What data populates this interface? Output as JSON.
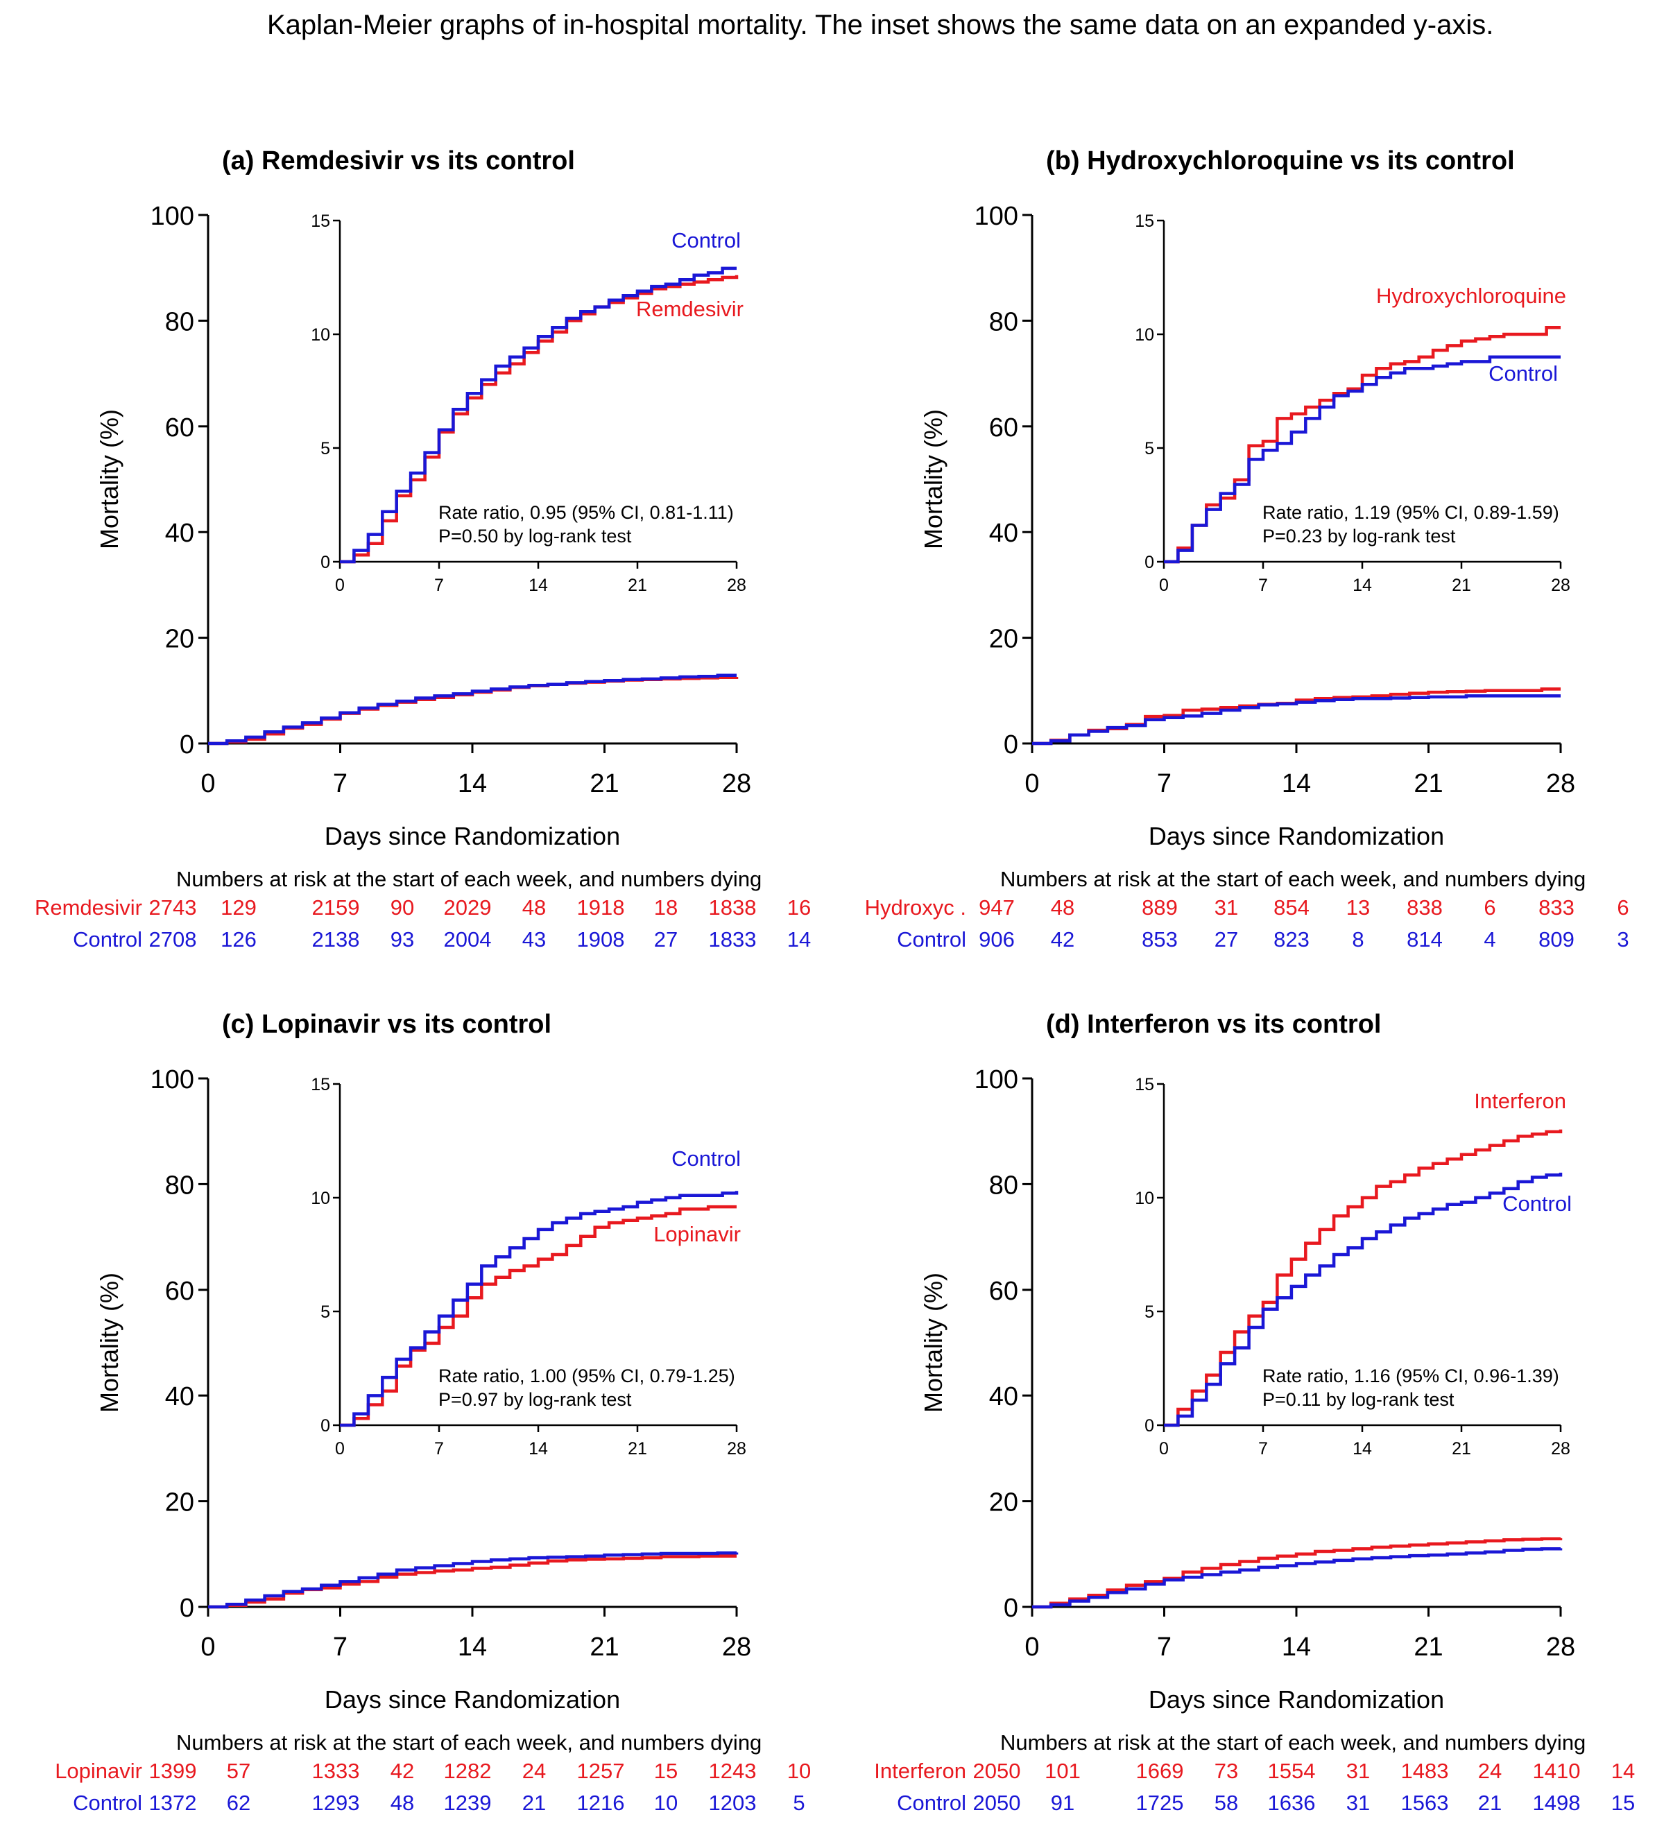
{
  "figure_title": "Kaplan-Meier graphs of in-hospital mortality. The inset shows the same data on an expanded y-axis.",
  "colors": {
    "treatment": "#e8191f",
    "control": "#1a17d6",
    "axis": "#000000"
  },
  "chart_data": [
    {
      "type": "line",
      "step": true,
      "title": "(a) Remdesivir vs its control",
      "xlabel": "Days since Randomization",
      "ylabel": "Mortality (%)",
      "xlim": [
        0,
        28
      ],
      "ylim": [
        0,
        100
      ],
      "xticks": [
        0,
        7,
        14,
        21,
        28
      ],
      "yticks": [
        0,
        20,
        40,
        60,
        80,
        100
      ],
      "inset": {
        "xlim": [
          0,
          28
        ],
        "ylim": [
          0,
          15
        ],
        "xticks": [
          0,
          7,
          14,
          21,
          28
        ],
        "yticks": [
          0,
          5,
          10,
          15
        ]
      },
      "series": [
        {
          "name": "Remdesivir",
          "role": "treatment",
          "label_in_inset": "Remdesivir",
          "x": [
            0,
            1,
            2,
            3,
            4,
            5,
            6,
            7,
            8,
            9,
            10,
            11,
            12,
            13,
            14,
            15,
            16,
            17,
            18,
            19,
            20,
            21,
            22,
            23,
            24,
            25,
            26,
            27,
            28
          ],
          "y": [
            0,
            0.3,
            0.8,
            1.8,
            2.9,
            3.6,
            4.6,
            5.7,
            6.5,
            7.2,
            7.8,
            8.3,
            8.7,
            9.2,
            9.7,
            10.1,
            10.6,
            10.9,
            11.2,
            11.4,
            11.6,
            11.8,
            12.0,
            12.1,
            12.2,
            12.3,
            12.4,
            12.5,
            12.6
          ]
        },
        {
          "name": "Control",
          "role": "control",
          "label_in_inset": "Control",
          "x": [
            0,
            1,
            2,
            3,
            4,
            5,
            6,
            7,
            8,
            9,
            10,
            11,
            12,
            13,
            14,
            15,
            16,
            17,
            18,
            19,
            20,
            21,
            22,
            23,
            24,
            25,
            26,
            27,
            28
          ],
          "y": [
            0,
            0.5,
            1.2,
            2.2,
            3.1,
            3.9,
            4.8,
            5.8,
            6.7,
            7.4,
            8.0,
            8.6,
            9.0,
            9.4,
            9.9,
            10.3,
            10.7,
            11.0,
            11.2,
            11.5,
            11.7,
            11.9,
            12.1,
            12.2,
            12.4,
            12.6,
            12.7,
            12.9,
            12.9
          ]
        }
      ],
      "stats": [
        "Rate ratio, 0.95 (95% CI, 0.81-1.11)",
        "P=0.50 by log-rank test"
      ],
      "risk_table": {
        "heading": "Numbers at risk at the start of each week, and numbers dying",
        "rows": [
          {
            "label": "Remdesivir",
            "role": "treatment",
            "values": [
              "2743",
              "129",
              "2159",
              "90",
              "2029",
              "48",
              "1918",
              "18",
              "1838",
              "16"
            ]
          },
          {
            "label": "Control",
            "role": "control",
            "values": [
              "2708",
              "126",
              "2138",
              "93",
              "2004",
              "43",
              "1908",
              "27",
              "1833",
              "14"
            ]
          }
        ]
      }
    },
    {
      "type": "line",
      "step": true,
      "title": "(b) Hydroxychloroquine vs its control",
      "xlabel": "Days since Randomization",
      "ylabel": "Mortality (%)",
      "xlim": [
        0,
        28
      ],
      "ylim": [
        0,
        100
      ],
      "xticks": [
        0,
        7,
        14,
        21,
        28
      ],
      "yticks": [
        0,
        20,
        40,
        60,
        80,
        100
      ],
      "inset": {
        "xlim": [
          0,
          28
        ],
        "ylim": [
          0,
          15
        ],
        "xticks": [
          0,
          7,
          14,
          21,
          28
        ],
        "yticks": [
          0,
          5,
          10,
          15
        ]
      },
      "series": [
        {
          "name": "Hydroxychloroquine",
          "role": "treatment",
          "label_in_inset": "Hydroxychloroquine",
          "x": [
            0,
            1,
            2,
            3,
            4,
            5,
            6,
            7,
            8,
            9,
            10,
            11,
            12,
            13,
            14,
            15,
            16,
            17,
            18,
            19,
            20,
            21,
            22,
            23,
            24,
            25,
            26,
            27,
            28
          ],
          "y": [
            0,
            0.6,
            1.6,
            2.5,
            2.8,
            3.6,
            5.1,
            5.3,
            6.3,
            6.5,
            6.8,
            7.1,
            7.4,
            7.6,
            8.2,
            8.5,
            8.7,
            8.8,
            9.0,
            9.3,
            9.5,
            9.7,
            9.8,
            9.9,
            10.0,
            10.0,
            10.0,
            10.3,
            10.3
          ]
        },
        {
          "name": "Control",
          "role": "control",
          "label_in_inset": "Control",
          "x": [
            0,
            1,
            2,
            3,
            4,
            5,
            6,
            7,
            8,
            9,
            10,
            11,
            12,
            13,
            14,
            15,
            16,
            17,
            18,
            19,
            20,
            21,
            22,
            23,
            24,
            25,
            26,
            27,
            28
          ],
          "y": [
            0,
            0.5,
            1.6,
            2.3,
            3.0,
            3.4,
            4.5,
            4.9,
            5.2,
            5.7,
            6.3,
            6.8,
            7.3,
            7.5,
            7.8,
            8.1,
            8.3,
            8.5,
            8.5,
            8.6,
            8.7,
            8.8,
            8.8,
            9.0,
            9.0,
            9.0,
            9.0,
            9.0,
            9.0
          ]
        }
      ],
      "stats": [
        "Rate ratio, 1.19 (95% CI, 0.89-1.59)",
        "P=0.23 by log-rank test"
      ],
      "risk_table": {
        "heading": "Numbers at risk at the start of each week, and numbers dying",
        "rows": [
          {
            "label": "Hydroxyc .",
            "role": "treatment",
            "values": [
              "947",
              "48",
              "889",
              "31",
              "854",
              "13",
              "838",
              "6",
              "833",
              "6"
            ]
          },
          {
            "label": "Control",
            "role": "control",
            "values": [
              "906",
              "42",
              "853",
              "27",
              "823",
              "8",
              "814",
              "4",
              "809",
              "3"
            ]
          }
        ]
      }
    },
    {
      "type": "line",
      "step": true,
      "title": "(c) Lopinavir vs its control",
      "xlabel": "Days since Randomization",
      "ylabel": "Mortality (%)",
      "xlim": [
        0,
        28
      ],
      "ylim": [
        0,
        100
      ],
      "xticks": [
        0,
        7,
        14,
        21,
        28
      ],
      "yticks": [
        0,
        20,
        40,
        60,
        80,
        100
      ],
      "inset": {
        "xlim": [
          0,
          28
        ],
        "ylim": [
          0,
          15
        ],
        "xticks": [
          0,
          7,
          14,
          21,
          28
        ],
        "yticks": [
          0,
          5,
          10,
          15
        ]
      },
      "series": [
        {
          "name": "Lopinavir",
          "role": "treatment",
          "label_in_inset": "Lopinavir",
          "x": [
            0,
            1,
            2,
            3,
            4,
            5,
            6,
            7,
            8,
            9,
            10,
            11,
            12,
            13,
            14,
            15,
            16,
            17,
            18,
            19,
            20,
            21,
            22,
            23,
            24,
            25,
            26,
            27,
            28
          ],
          "y": [
            0,
            0.3,
            0.9,
            1.5,
            2.6,
            3.3,
            3.6,
            4.3,
            4.8,
            5.6,
            6.2,
            6.5,
            6.8,
            7.0,
            7.3,
            7.5,
            7.9,
            8.3,
            8.7,
            8.9,
            9.0,
            9.1,
            9.2,
            9.3,
            9.5,
            9.5,
            9.6,
            9.6,
            9.6
          ]
        },
        {
          "name": "Control",
          "role": "control",
          "label_in_inset": "Control",
          "x": [
            0,
            1,
            2,
            3,
            4,
            5,
            6,
            7,
            8,
            9,
            10,
            11,
            12,
            13,
            14,
            15,
            16,
            17,
            18,
            19,
            20,
            21,
            22,
            23,
            24,
            25,
            26,
            27,
            28
          ],
          "y": [
            0,
            0.5,
            1.3,
            2.1,
            2.9,
            3.4,
            4.1,
            4.8,
            5.5,
            6.2,
            7.0,
            7.4,
            7.8,
            8.2,
            8.6,
            8.9,
            9.1,
            9.3,
            9.4,
            9.5,
            9.6,
            9.8,
            9.9,
            10.0,
            10.1,
            10.1,
            10.1,
            10.2,
            10.3
          ]
        }
      ],
      "stats": [
        "Rate ratio, 1.00 (95% CI, 0.79-1.25)",
        "P=0.97 by log-rank test"
      ],
      "risk_table": {
        "heading": "Numbers at risk at the start of each week, and numbers dying",
        "rows": [
          {
            "label": "Lopinavir",
            "role": "treatment",
            "values": [
              "1399",
              "57",
              "1333",
              "42",
              "1282",
              "24",
              "1257",
              "15",
              "1243",
              "10"
            ]
          },
          {
            "label": "Control",
            "role": "control",
            "values": [
              "1372",
              "62",
              "1293",
              "48",
              "1239",
              "21",
              "1216",
              "10",
              "1203",
              "5"
            ]
          }
        ]
      }
    },
    {
      "type": "line",
      "step": true,
      "title": "(d) Interferon vs its control",
      "xlabel": "Days since Randomization",
      "ylabel": "Mortality (%)",
      "xlim": [
        0,
        28
      ],
      "ylim": [
        0,
        100
      ],
      "xticks": [
        0,
        7,
        14,
        21,
        28
      ],
      "yticks": [
        0,
        20,
        40,
        60,
        80,
        100
      ],
      "inset": {
        "xlim": [
          0,
          28
        ],
        "ylim": [
          0,
          15
        ],
        "xticks": [
          0,
          7,
          14,
          21,
          28
        ],
        "yticks": [
          0,
          5,
          10,
          15
        ]
      },
      "series": [
        {
          "name": "Interferon",
          "role": "treatment",
          "label_in_inset": "Interferon",
          "x": [
            0,
            1,
            2,
            3,
            4,
            5,
            6,
            7,
            8,
            9,
            10,
            11,
            12,
            13,
            14,
            15,
            16,
            17,
            18,
            19,
            20,
            21,
            22,
            23,
            24,
            25,
            26,
            27,
            28
          ],
          "y": [
            0,
            0.7,
            1.5,
            2.2,
            3.2,
            4.1,
            4.8,
            5.4,
            6.6,
            7.3,
            8.0,
            8.6,
            9.2,
            9.6,
            10.0,
            10.5,
            10.7,
            11.0,
            11.3,
            11.5,
            11.7,
            11.9,
            12.1,
            12.3,
            12.5,
            12.7,
            12.8,
            12.9,
            13.0
          ]
        },
        {
          "name": "Control",
          "role": "control",
          "label_in_inset": "Control",
          "x": [
            0,
            1,
            2,
            3,
            4,
            5,
            6,
            7,
            8,
            9,
            10,
            11,
            12,
            13,
            14,
            15,
            16,
            17,
            18,
            19,
            20,
            21,
            22,
            23,
            24,
            25,
            26,
            27,
            28
          ],
          "y": [
            0,
            0.4,
            1.1,
            1.8,
            2.7,
            3.4,
            4.3,
            5.1,
            5.6,
            6.1,
            6.6,
            7.0,
            7.5,
            7.8,
            8.2,
            8.5,
            8.8,
            9.1,
            9.3,
            9.5,
            9.7,
            9.8,
            10.0,
            10.2,
            10.4,
            10.7,
            10.9,
            11.0,
            11.1
          ]
        }
      ],
      "stats": [
        "Rate ratio, 1.16 (95% CI, 0.96-1.39)",
        "P=0.11 by log-rank test"
      ],
      "risk_table": {
        "heading": "Numbers at risk at the start of each week, and numbers dying",
        "rows": [
          {
            "label": "Interferon",
            "role": "treatment",
            "values": [
              "2050",
              "101",
              "1669",
              "73",
              "1554",
              "31",
              "1483",
              "24",
              "1410",
              "14"
            ]
          },
          {
            "label": "Control",
            "role": "control",
            "values": [
              "2050",
              "91",
              "1725",
              "58",
              "1636",
              "31",
              "1563",
              "21",
              "1498",
              "15"
            ]
          }
        ]
      }
    }
  ]
}
